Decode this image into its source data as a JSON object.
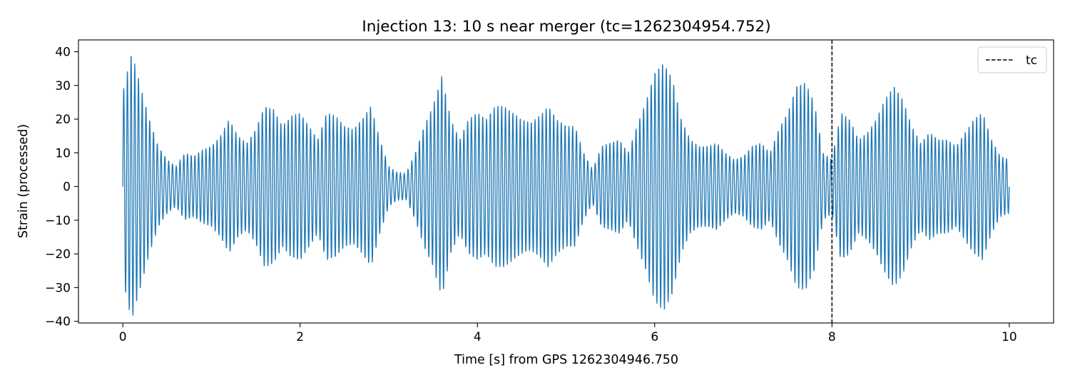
{
  "chart_data": {
    "type": "line",
    "title": "Injection 13: 10 s near merger (tc=1262304954.752)",
    "xlabel": "Time [s] from GPS 1262304946.750",
    "ylabel": "Strain (processed)",
    "xlim": [
      -0.5,
      10.5
    ],
    "ylim": [
      -40.5,
      43.5
    ],
    "xticks": [
      0,
      2,
      4,
      6,
      8,
      10
    ],
    "xtick_labels": [
      "0",
      "2",
      "4",
      "6",
      "8",
      "10"
    ],
    "yticks": [
      -40,
      -30,
      -20,
      -10,
      0,
      10,
      20,
      30,
      40
    ],
    "ytick_labels": [
      "−40",
      "−30",
      "−20",
      "−10",
      "0",
      "10",
      "20",
      "30",
      "40"
    ],
    "grid": false,
    "legend_position": "top-right",
    "legend": [
      {
        "label": "tc",
        "style": "dashed",
        "color": "#000000"
      }
    ],
    "series": [
      {
        "color": "#1f77b4",
        "x": [
          0.0,
          0.1,
          0.2,
          0.3,
          0.4,
          0.5,
          0.6,
          0.7,
          0.8,
          0.9,
          1.0,
          1.1,
          1.2,
          1.3,
          1.4,
          1.5,
          1.6,
          1.7,
          1.8,
          1.9,
          2.0,
          2.1,
          2.2,
          2.3,
          2.4,
          2.5,
          2.6,
          2.7,
          2.8,
          2.9,
          3.0,
          3.1,
          3.2,
          3.3,
          3.4,
          3.5,
          3.6,
          3.7,
          3.8,
          3.9,
          4.0,
          4.1,
          4.2,
          4.3,
          4.4,
          4.5,
          4.6,
          4.7,
          4.8,
          4.9,
          5.0,
          5.1,
          5.2,
          5.3,
          5.4,
          5.5,
          5.6,
          5.7,
          5.8,
          5.9,
          6.0,
          6.1,
          6.2,
          6.3,
          6.4,
          6.5,
          6.6,
          6.7,
          6.8,
          6.9,
          7.0,
          7.1,
          7.2,
          7.3,
          7.4,
          7.5,
          7.6,
          7.7,
          7.8,
          7.9,
          8.0,
          8.1,
          8.2,
          8.3,
          8.4,
          8.5,
          8.6,
          8.7,
          8.8,
          8.9,
          9.0,
          9.1,
          9.2,
          9.3,
          9.4,
          9.5,
          9.6,
          9.7,
          9.8,
          9.9,
          10.0
        ],
        "envelope": [
          28,
          40,
          30,
          20,
          12,
          8,
          6,
          10,
          9,
          11,
          12,
          15,
          20,
          15,
          13,
          17,
          24,
          23,
          18,
          21,
          22,
          18,
          14,
          22,
          21,
          18,
          17,
          20,
          24,
          14,
          6,
          4,
          4,
          10,
          18,
          24,
          33,
          20,
          14,
          20,
          22,
          20,
          24,
          24,
          22,
          20,
          19,
          21,
          24,
          20,
          18,
          18,
          10,
          5,
          12,
          13,
          14,
          10,
          18,
          25,
          34,
          37,
          32,
          20,
          14,
          12,
          12,
          13,
          10,
          8,
          9,
          12,
          13,
          10,
          17,
          22,
          30,
          31,
          25,
          10,
          8,
          22,
          20,
          14,
          16,
          20,
          26,
          30,
          26,
          18,
          13,
          16,
          14,
          14,
          12,
          16,
          20,
          22,
          14,
          9,
          8
        ]
      }
    ],
    "vlines": [
      {
        "x": 8.0,
        "label": "tc",
        "style": "dashed",
        "color": "#000000"
      }
    ]
  }
}
